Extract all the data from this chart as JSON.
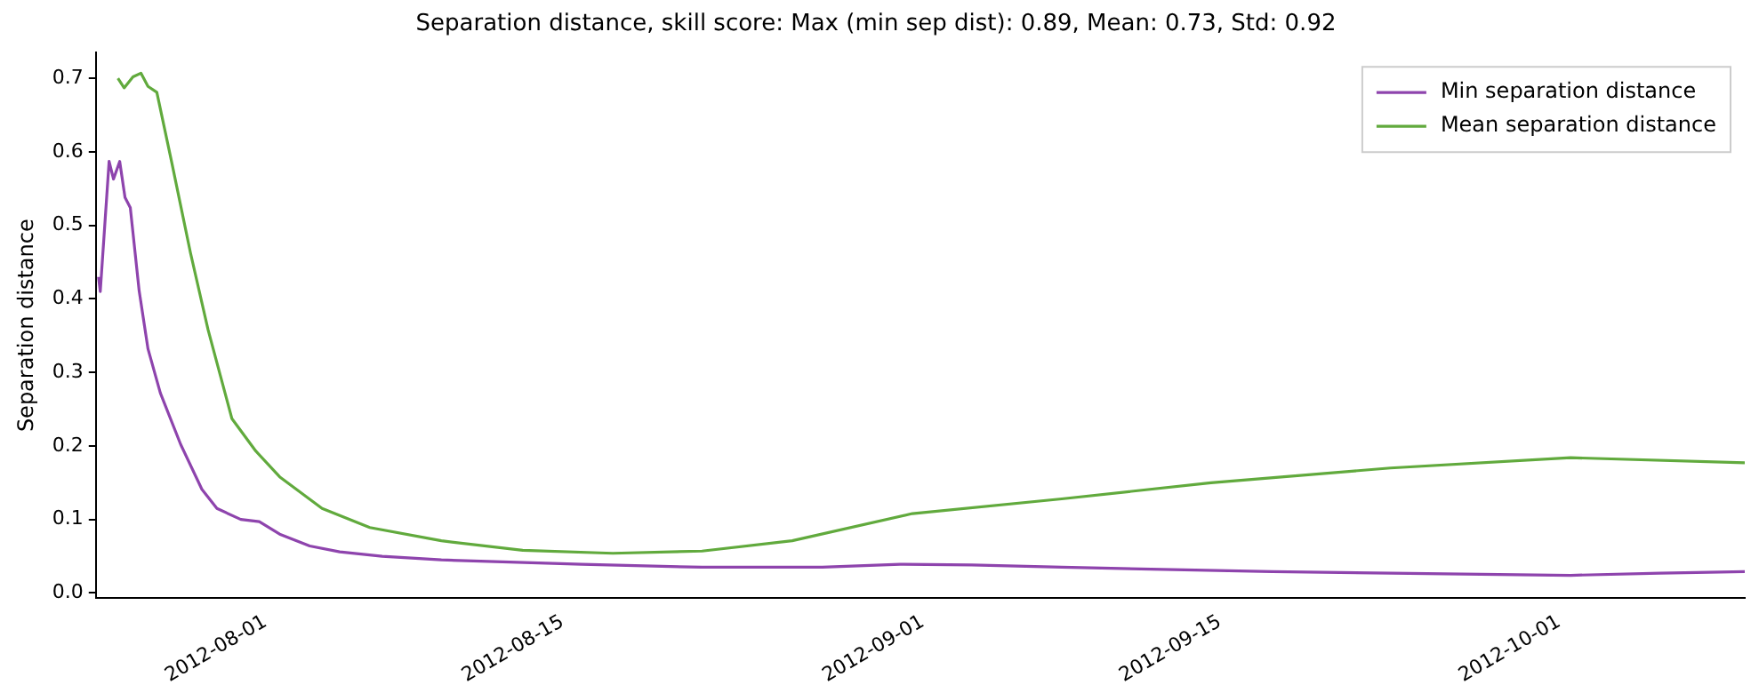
{
  "chart_data": {
    "type": "line",
    "title": "Separation distance, skill score: Max (min sep dist): 0.89, Mean: 0.73, Std: 0.92",
    "ylabel": "Separation distance",
    "series": [
      {
        "name": "Min separation distance",
        "color": "#8e44ad",
        "x": [
          "2012-07-24T03:00",
          "2012-07-24T05:00",
          "2012-07-24T15:00",
          "2012-07-24T20:00",
          "2012-07-25T03:00",
          "2012-07-25T09:00",
          "2012-07-25T15:00",
          "2012-07-26T01:00",
          "2012-07-26T11:00",
          "2012-07-27T01:00",
          "2012-07-28T00:00",
          "2012-07-29T00:00",
          "2012-07-29T17:00",
          "2012-07-30T20:00",
          "2012-07-31T17:00",
          "2012-08-01T16:00",
          "2012-08-03T02:00",
          "2012-08-04T12:00",
          "2012-08-06T12:00",
          "2012-08-09T07:00",
          "2012-08-15T22:00",
          "2012-08-21T14:00",
          "2012-08-27T06:00",
          "2012-08-30T22:00",
          "2012-09-03T07:00",
          "2012-09-07T13:00",
          "2012-09-17T11:00",
          "2012-10-01T13:00",
          "2012-10-05T18:00",
          "2012-10-09T18:00"
        ],
        "values": [
          0.43,
          0.41,
          0.587,
          0.563,
          0.587,
          0.538,
          0.524,
          0.411,
          0.332,
          0.272,
          0.202,
          0.141,
          0.115,
          0.1,
          0.097,
          0.08,
          0.064,
          0.056,
          0.05,
          0.045,
          0.039,
          0.035,
          0.035,
          0.039,
          0.038,
          0.035,
          0.029,
          0.024,
          0.027,
          0.029
        ]
      },
      {
        "name": "Mean separation distance",
        "color": "#61aa3d",
        "x": [
          "2012-07-25T01:00",
          "2012-07-25T08:00",
          "2012-07-25T18:00",
          "2012-07-26T03:00",
          "2012-07-26T11:00",
          "2012-07-26T21:00",
          "2012-07-27T14:00",
          "2012-07-28T11:00",
          "2012-07-29T07:00",
          "2012-07-30T10:00",
          "2012-07-31T13:00",
          "2012-08-01T16:00",
          "2012-08-03T16:00",
          "2012-08-05T22:00",
          "2012-08-09T07:00",
          "2012-08-13T03:00",
          "2012-08-17T09:00",
          "2012-08-21T14:00",
          "2012-08-25T20:00",
          "2012-08-31T12:00",
          "2012-09-07T13:00",
          "2012-09-14T14:00",
          "2012-09-23T01:00",
          "2012-10-01T13:00",
          "2012-10-09T18:00"
        ],
        "values": [
          0.7,
          0.687,
          0.702,
          0.707,
          0.689,
          0.681,
          0.585,
          0.463,
          0.358,
          0.237,
          0.193,
          0.158,
          0.115,
          0.089,
          0.071,
          0.058,
          0.054,
          0.057,
          0.071,
          0.108,
          0.128,
          0.15,
          0.17,
          0.184,
          0.177
        ]
      }
    ],
    "xlim": [
      "2012-07-24T00:00",
      "2012-10-09T18:00"
    ],
    "xticks": [
      "2012-08-01",
      "2012-08-15",
      "2012-09-01",
      "2012-09-15",
      "2012-10-01"
    ],
    "ylim": [
      -0.007,
      0.735
    ],
    "yticks": [
      {
        "value": 0,
        "label": "0.0"
      },
      {
        "value": 0.1,
        "label": "0.1"
      },
      {
        "value": 0.2,
        "label": "0.2"
      },
      {
        "value": 0.3,
        "label": "0.3"
      },
      {
        "value": 0.4,
        "label": "0.4"
      },
      {
        "value": 0.5,
        "label": "0.5"
      },
      {
        "value": 0.6,
        "label": "0.6"
      },
      {
        "value": 0.7,
        "label": "0.7"
      }
    ],
    "grid": false,
    "legend": "top right",
    "marker": "none",
    "line_style": "solid"
  }
}
